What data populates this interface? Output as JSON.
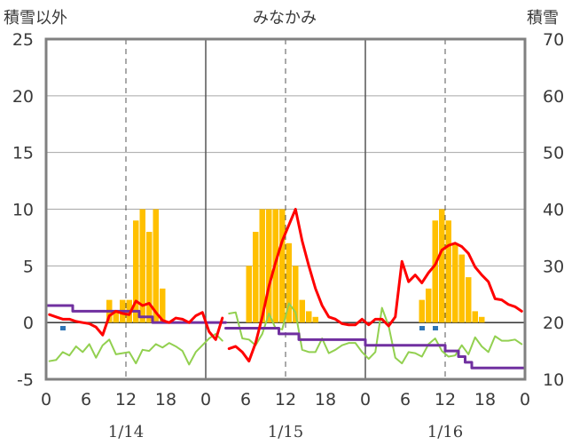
{
  "chart_data": {
    "type": "bar+line",
    "title": "みなかみ",
    "ylabel_left": "積雪以外",
    "ylabel_right": "積雪",
    "left_axis": {
      "ylim": [
        -5,
        25
      ],
      "ticks": [
        -5,
        0,
        5,
        10,
        15,
        20,
        25
      ]
    },
    "right_axis": {
      "ylim": [
        10,
        70
      ],
      "ticks": [
        10,
        20,
        30,
        40,
        50,
        60,
        70
      ]
    },
    "x_axis": {
      "hours_range": [
        0,
        72
      ],
      "tick_hours": [
        0,
        6,
        12,
        18,
        24,
        30,
        36,
        42,
        48,
        54,
        60,
        66,
        72
      ],
      "tick_labels": [
        "0",
        "6",
        "12",
        "18",
        "0",
        "6",
        "12",
        "18",
        "0",
        "6",
        "12",
        "18",
        "0"
      ],
      "day_separators": [
        24,
        48
      ],
      "dashed_noon_lines": [
        12,
        36,
        60
      ],
      "day_labels": [
        {
          "text": "1/14",
          "center_hour": 12
        },
        {
          "text": "1/15",
          "center_hour": 36
        },
        {
          "text": "1/16",
          "center_hour": 60
        }
      ]
    },
    "grid": true,
    "colors": {
      "snowfall_bars": "#ffc000",
      "precip_marks": "#2e75b6",
      "temperature": "#ff0000",
      "wind": "#92d050",
      "snow_depth": "#7030a0",
      "frame": "#808080",
      "zero_line": "#404040"
    },
    "snowfall_bars": {
      "axis": "left",
      "hours": [
        9,
        10,
        11,
        12,
        13,
        14,
        15,
        16,
        17,
        30,
        31,
        32,
        33,
        34,
        35,
        36,
        37,
        38,
        39,
        40,
        56,
        57,
        58,
        59,
        60,
        61,
        62,
        63,
        64,
        65
      ],
      "values": [
        2,
        1,
        2,
        2,
        9,
        10,
        8,
        10,
        3,
        5,
        8,
        10,
        10,
        10,
        10,
        7,
        5,
        2,
        1,
        0.5,
        2,
        3,
        9,
        10,
        9,
        7,
        6,
        4,
        1,
        0.5
      ]
    },
    "precip_marks": {
      "axis": "left",
      "hours": [
        2,
        56,
        58
      ],
      "values": [
        -0.3,
        -0.3,
        -0.3
      ]
    },
    "series": [
      {
        "key": "temperature",
        "axis": "left",
        "x": [
          0,
          1,
          2,
          3,
          4,
          5,
          6,
          7,
          8,
          9,
          10,
          11,
          12,
          13,
          14,
          15,
          16,
          17,
          18,
          19,
          20,
          21,
          22,
          23,
          24,
          25,
          26
        ],
        "values": [
          0.7,
          0.5,
          0.3,
          0.3,
          0.1,
          0.0,
          -0.1,
          -0.4,
          -1.1,
          0.6,
          1.0,
          0.8,
          0.7,
          1.9,
          1.5,
          1.7,
          0.9,
          0.2,
          0.0,
          0.4,
          0.3,
          0.0,
          0.6,
          0.9,
          -0.8,
          -1.5,
          0.4
        ]
      },
      {
        "key": "temperature",
        "axis": "left",
        "x": [
          27,
          28,
          29,
          30,
          31,
          32,
          33,
          34,
          35,
          36,
          37,
          38,
          39,
          40,
          41,
          42,
          43,
          44,
          45,
          46,
          47,
          48,
          49,
          50,
          51,
          52,
          53,
          54,
          55,
          56,
          57,
          58,
          59,
          60,
          61,
          62,
          63,
          64,
          65,
          66,
          67,
          68,
          69,
          70,
          71
        ],
        "values": [
          -2.3,
          -2.1,
          -2.6,
          -3.4,
          -1.8,
          0.5,
          3.2,
          5.3,
          7.2,
          8.6,
          10.0,
          7.2,
          5.0,
          3.0,
          1.5,
          0.5,
          0.3,
          -0.1,
          -0.2,
          -0.2,
          0.3,
          -0.2,
          0.3,
          0.3,
          -0.3,
          0.5,
          5.4,
          3.6,
          4.2,
          3.5,
          4.4,
          5.1,
          6.4,
          6.8,
          7.0,
          6.7,
          6.1,
          4.9,
          4.2,
          3.6,
          2.1,
          2.0,
          1.6,
          1.4,
          1.0
        ]
      },
      {
        "key": "wind",
        "axis": "left",
        "x": [
          0,
          1,
          2,
          3,
          4,
          5,
          6,
          7,
          8,
          9,
          10,
          11,
          12,
          13,
          14,
          15,
          16,
          17,
          18,
          19,
          20,
          21,
          22,
          23,
          24,
          25,
          26
        ],
        "values": [
          -3.4,
          -3.3,
          -2.6,
          -2.9,
          -2.1,
          -2.6,
          -1.9,
          -3.1,
          -2.0,
          -1.5,
          -2.8,
          -2.7,
          -2.6,
          -3.6,
          -2.4,
          -2.5,
          -1.9,
          -2.2,
          -1.8,
          -2.1,
          -2.5,
          -3.7,
          -2.6,
          -2.0,
          -1.4,
          -1.0,
          -1.6
        ]
      },
      {
        "key": "wind",
        "axis": "left",
        "x": [
          27,
          28,
          29,
          30,
          31,
          32,
          33,
          34,
          35,
          36,
          37,
          38,
          39,
          40,
          41,
          42,
          43,
          44,
          45,
          46,
          47,
          48,
          49,
          50,
          51,
          52,
          53,
          54,
          55,
          56,
          57,
          58,
          59,
          60,
          61,
          62,
          63,
          64,
          65,
          66,
          67,
          68,
          69,
          70,
          71
        ],
        "values": [
          0.8,
          0.9,
          -1.4,
          -1.5,
          -2.0,
          -1.0,
          0.8,
          -0.5,
          -0.6,
          1.7,
          0.9,
          -2.4,
          -2.6,
          -2.6,
          -1.4,
          -2.7,
          -2.4,
          -2.0,
          -1.8,
          -1.8,
          -2.6,
          -3.2,
          -2.6,
          1.3,
          -0.3,
          -3.1,
          -3.6,
          -2.6,
          -2.7,
          -3.0,
          -1.9,
          -1.4,
          -2.5,
          -3.0,
          -2.9,
          -2.0,
          -2.8,
          -1.3,
          -2.1,
          -2.6,
          -1.2,
          -1.6,
          -1.6,
          -1.5,
          -1.9
        ]
      },
      {
        "key": "snow_depth",
        "axis": "right",
        "x": [
          0,
          1,
          2,
          3,
          4,
          5,
          6,
          7,
          8,
          9,
          10,
          11,
          12,
          13,
          14,
          15,
          16,
          17,
          18,
          19,
          20,
          21,
          22,
          23,
          24,
          25,
          26
        ],
        "values": [
          23,
          23,
          23,
          23,
          22,
          22,
          22,
          22,
          22,
          22,
          22,
          22,
          22,
          22,
          21,
          21,
          20,
          20,
          20,
          20,
          20,
          20,
          20,
          20,
          20,
          20,
          20
        ]
      },
      {
        "key": "snow_depth",
        "axis": "right",
        "x": [
          27,
          28,
          29,
          30,
          31,
          32,
          33,
          34,
          35,
          36,
          37,
          38,
          39,
          40,
          41,
          42,
          43,
          44,
          45,
          46,
          47,
          48,
          49,
          50,
          51,
          52,
          53,
          54,
          55,
          56,
          57,
          58,
          59,
          60,
          61,
          62,
          63,
          64,
          65,
          66,
          67,
          68,
          69,
          70,
          71
        ],
        "values": [
          19,
          19,
          19,
          19,
          19,
          19,
          19,
          19,
          18,
          18,
          18,
          17,
          17,
          17,
          17,
          17,
          17,
          17,
          17,
          17,
          17,
          16,
          16,
          16,
          16,
          16,
          16,
          16,
          16,
          16,
          16,
          16,
          16,
          15,
          15,
          14,
          13,
          12,
          12,
          12,
          12,
          12,
          12,
          12,
          12
        ]
      }
    ]
  }
}
